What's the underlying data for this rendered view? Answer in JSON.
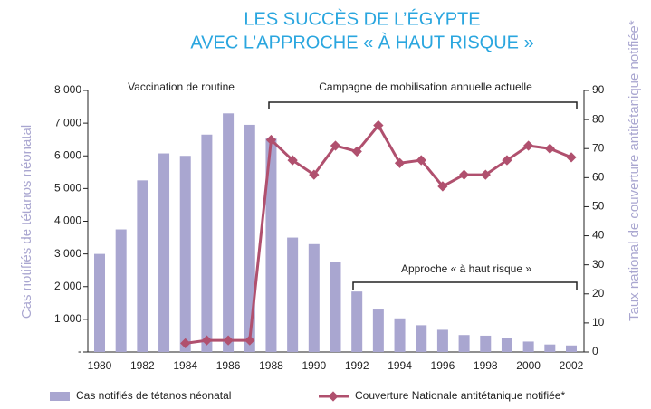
{
  "chart_data": {
    "type": "bar_line",
    "title": [
      "LES SUCCÈS DE L’ÉGYPTE",
      "AVEC L’APPROCHE « À HAUT RISQUE »"
    ],
    "ylabel": "Cas notifiés de tétanos néonatal",
    "y2label": "Taux national de couverture antitétanique notifiée*",
    "categories": [
      1980,
      null,
      1982,
      null,
      1984,
      null,
      1986,
      null,
      1988,
      null,
      1990,
      null,
      1992,
      null,
      1994,
      null,
      1996,
      null,
      1998,
      null,
      2000,
      null,
      2002
    ],
    "series": [
      {
        "name": "Cas notifiés de tétanos néonatal",
        "type": "bar",
        "color": "#a9a6d0",
        "values": [
          3000,
          3750,
          5250,
          6075,
          6000,
          6650,
          7300,
          6950,
          6550,
          3500,
          3300,
          2750,
          1850,
          1300,
          1030,
          820,
          680,
          520,
          500,
          420,
          320,
          230,
          200
        ]
      },
      {
        "name": "Couverture Nationale antitétanique notifiée*",
        "type": "line",
        "axis": "y2",
        "color": "#b0506e",
        "values": [
          null,
          null,
          null,
          null,
          3,
          4,
          4,
          4,
          73,
          66,
          61,
          71,
          69,
          78,
          65,
          66,
          57,
          61,
          61,
          66,
          71,
          70,
          67
        ]
      }
    ],
    "ylim": [
      0,
      8000
    ],
    "yticks": [
      {
        "value": 0,
        "label": "-"
      },
      {
        "value": 1000,
        "label": "1 000"
      },
      {
        "value": 2000,
        "label": "2 000"
      },
      {
        "value": 3000,
        "label": "3 000"
      },
      {
        "value": 4000,
        "label": "4 000"
      },
      {
        "value": 5000,
        "label": "5 000"
      },
      {
        "value": 6000,
        "label": "6 000"
      },
      {
        "value": 7000,
        "label": "7 000"
      },
      {
        "value": 8000,
        "label": "8 000"
      }
    ],
    "y2lim": [
      0,
      90
    ],
    "y2ticks": [
      0,
      10,
      20,
      30,
      40,
      50,
      60,
      70,
      80,
      90
    ],
    "annotations": [
      "Vaccination de routine",
      "Campagne de mobilisation annuelle actuelle",
      "Approche « à haut risque »"
    ]
  }
}
